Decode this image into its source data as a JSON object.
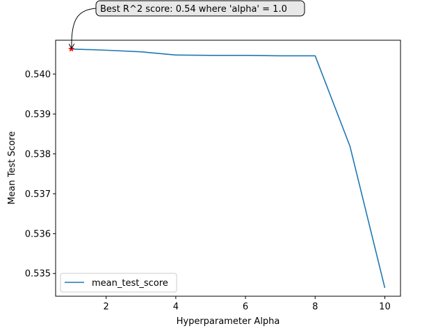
{
  "chart_data": {
    "type": "line",
    "xlabel": "Hyperparameter Alpha",
    "ylabel": "Mean Test Score",
    "xlim": [
      0.55,
      10.45
    ],
    "ylim": [
      0.53443,
      0.54085
    ],
    "x_ticks": [
      2,
      4,
      6,
      8,
      10
    ],
    "y_ticks": [
      0.535,
      0.536,
      0.537,
      0.538,
      0.539,
      0.54
    ],
    "grid": false,
    "series": [
      {
        "name": "mean_test_score",
        "color": "#1f77b4",
        "x": [
          1,
          2,
          3,
          4,
          5,
          6,
          7,
          8,
          9,
          10
        ],
        "y": [
          0.54063,
          0.5406,
          0.54056,
          0.54048,
          0.54047,
          0.54047,
          0.54046,
          0.54046,
          0.53819,
          0.53464
        ]
      }
    ],
    "best_point": {
      "x": 1.0,
      "y": 0.54063,
      "color": "#ff0000",
      "marker": "star"
    },
    "annotation": {
      "text": "Best R^2 score: 0.54 where 'alpha' = 1.0"
    },
    "legend": {
      "placement": "lower-left",
      "entries": [
        "mean_test_score"
      ]
    }
  }
}
